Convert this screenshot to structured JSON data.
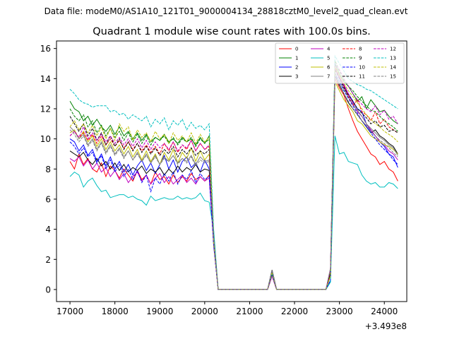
{
  "suptitle": "Data file: modeM0/AS1A10_121T01_9000004134_28818cztM0_level2_quad_clean.evt",
  "chart_data": {
    "type": "line",
    "title": "Quadrant 1 module wise count rates with 100.0s bins.",
    "xlabel": "",
    "ylabel": "",
    "x_offset_text": "+3.493e8",
    "xlim": [
      16700,
      24500
    ],
    "ylim": [
      -0.8,
      16.5
    ],
    "xticks": [
      17000,
      18000,
      19000,
      20000,
      21000,
      22000,
      23000,
      24000
    ],
    "yticks": [
      0,
      2,
      4,
      6,
      8,
      10,
      12,
      14,
      16
    ],
    "grid": false,
    "legend_position": "top-right",
    "x_start": 17000,
    "x_step": 100,
    "gap_start": 20100,
    "gap_end": 22800,
    "series": [
      {
        "name": "0",
        "color": "#ff0000",
        "dash": "solid",
        "pre": [
          8.5,
          8.0,
          9.0,
          8.3,
          8.7,
          8.0,
          7.8,
          8.4,
          7.5,
          8.2,
          7.9,
          7.4,
          8.0,
          7.6,
          7.2,
          7.9,
          7.3,
          7.6,
          7.0,
          7.8,
          7.3,
          7.5,
          7.0,
          7.6,
          7.1,
          7.5,
          7.2,
          7.7,
          7.3,
          7.5,
          7.2,
          7.6
        ],
        "post": [
          14.0,
          13.4,
          12.9,
          12.0,
          11.2,
          10.5,
          10.0,
          9.5,
          9.0,
          8.8,
          8.3,
          8.5,
          8.0,
          7.8,
          7.2
        ]
      },
      {
        "name": "1",
        "color": "#008000",
        "dash": "solid",
        "pre": [
          12.5,
          12.0,
          11.8,
          11.2,
          11.5,
          10.9,
          11.3,
          10.8,
          10.5,
          10.9,
          10.3,
          10.8,
          10.2,
          10.5,
          10.0,
          10.4,
          9.9,
          10.3,
          9.8,
          10.1,
          9.9,
          10.3,
          9.8,
          10.0,
          9.7,
          10.1,
          9.8,
          10.0,
          9.6,
          10.1,
          9.7,
          10.2
        ],
        "post": [
          15.0,
          14.3,
          13.8,
          13.5,
          13.0,
          12.5,
          12.8,
          12.0,
          12.6,
          12.2,
          11.8,
          11.9,
          11.5,
          11.2,
          11.0
        ]
      },
      {
        "name": "2",
        "color": "#0000ff",
        "dash": "solid",
        "pre": [
          10.0,
          9.8,
          9.2,
          9.6,
          8.9,
          9.3,
          8.5,
          9.0,
          8.2,
          8.8,
          8.0,
          8.5,
          7.8,
          8.3,
          7.6,
          8.2,
          8.6,
          7.9,
          8.4,
          7.7,
          8.3,
          8.9,
          8.0,
          8.6,
          7.8,
          8.5,
          8.8,
          8.1,
          8.4,
          7.8,
          8.6,
          8.0
        ],
        "post": [
          14.8,
          14.0,
          13.5,
          13.0,
          12.5,
          12.0,
          11.8,
          11.0,
          10.5,
          10.2,
          9.8,
          9.5,
          9.0,
          8.8,
          8.1
        ]
      },
      {
        "name": "3",
        "color": "#000000",
        "dash": "solid",
        "pre": [
          9.2,
          9.0,
          8.8,
          9.1,
          8.6,
          8.3,
          8.7,
          8.2,
          8.5,
          8.0,
          8.4,
          7.9,
          8.3,
          7.8,
          8.1,
          7.9,
          8.2,
          7.7,
          8.0,
          7.8,
          8.1,
          7.6,
          8.0,
          7.7,
          8.2,
          7.8,
          8.1,
          7.9,
          8.3,
          7.8,
          8.0,
          7.9
        ],
        "post": [
          14.2,
          13.6,
          13.0,
          12.4,
          12.0,
          11.6,
          11.2,
          10.8,
          10.4,
          10.6,
          10.2,
          10.0,
          9.7,
          9.5,
          9.0
        ]
      },
      {
        "name": "4",
        "color": "#bf00bf",
        "dash": "solid",
        "pre": [
          8.7,
          8.5,
          8.8,
          8.2,
          8.6,
          8.0,
          8.4,
          7.8,
          8.1,
          7.5,
          7.9,
          7.3,
          7.7,
          7.1,
          7.5,
          7.8,
          7.2,
          7.6,
          7.0,
          7.4,
          7.7,
          7.1,
          7.5,
          7.0,
          7.3,
          7.6,
          7.1,
          7.4,
          7.0,
          7.5,
          7.2,
          7.4
        ],
        "post": [
          14.6,
          14.1,
          13.6,
          13.0,
          12.4,
          11.8,
          11.5,
          11.0,
          10.6,
          10.2,
          9.8,
          9.6,
          9.2,
          9.0,
          8.6
        ]
      },
      {
        "name": "5",
        "color": "#00bfbf",
        "dash": "solid",
        "pre": [
          7.5,
          7.8,
          7.6,
          6.8,
          7.2,
          7.4,
          6.9,
          6.5,
          6.6,
          6.1,
          6.2,
          6.3,
          6.3,
          6.1,
          6.2,
          6.0,
          5.9,
          5.6,
          6.2,
          5.9,
          6.0,
          6.1,
          6.0,
          6.0,
          6.2,
          6.0,
          6.1,
          6.0,
          6.1,
          6.4,
          5.9,
          5.8
        ],
        "post": [
          10.2,
          9.0,
          9.1,
          8.5,
          8.4,
          8.3,
          7.6,
          7.2,
          7.0,
          7.1,
          6.8,
          6.8,
          7.1,
          7.0,
          6.7
        ]
      },
      {
        "name": "6",
        "color": "#bfbf00",
        "dash": "solid",
        "pre": [
          10.4,
          10.6,
          10.0,
          10.5,
          9.8,
          10.2,
          9.5,
          10.0,
          9.3,
          9.8,
          9.2,
          9.6,
          9.0,
          9.5,
          8.8,
          9.3,
          8.6,
          9.2,
          8.5,
          9.0,
          8.3,
          9.1,
          8.6,
          9.3,
          8.4,
          9.1,
          8.7,
          9.4,
          8.5,
          9.2,
          8.6,
          9.0
        ],
        "post": [
          13.8,
          13.2,
          12.6,
          12.2,
          11.8,
          11.2,
          11.0,
          10.6,
          10.2,
          10.0,
          9.8,
          9.6,
          9.5,
          9.3,
          9.0
        ]
      },
      {
        "name": "7",
        "color": "#808080",
        "dash": "solid",
        "pre": [
          10.8,
          10.5,
          10.0,
          10.3,
          9.6,
          10.0,
          9.3,
          9.8,
          9.1,
          9.6,
          9.0,
          9.4,
          8.8,
          9.2,
          8.6,
          9.1,
          8.5,
          9.0,
          8.4,
          8.9,
          8.3,
          8.8,
          8.5,
          8.9,
          8.4,
          8.7,
          8.5,
          8.9,
          8.3,
          8.8,
          8.5,
          8.6
        ],
        "post": [
          14.4,
          13.8,
          13.3,
          12.8,
          12.3,
          11.9,
          11.5,
          11.0,
          10.7,
          10.4,
          10.1,
          9.9,
          9.6,
          9.4,
          8.9
        ]
      },
      {
        "name": "8",
        "color": "#ff0000",
        "dash": "dashed",
        "pre": [
          10.2,
          10.5,
          10.1,
          10.4,
          9.9,
          10.3,
          9.7,
          10.2,
          9.6,
          10.0,
          9.5,
          9.9,
          9.4,
          9.8,
          9.3,
          9.7,
          9.2,
          9.6,
          9.1,
          9.5,
          9.0,
          9.7,
          9.2,
          9.8,
          9.1,
          9.6,
          9.3,
          9.9,
          9.2,
          9.7,
          9.3,
          9.5
        ],
        "post": [
          14.8,
          14.2,
          13.5,
          12.8,
          12.2,
          12.6,
          11.8,
          11.6,
          11.2,
          11.8,
          11.0,
          11.3,
          10.8,
          10.6,
          10.4
        ]
      },
      {
        "name": "9",
        "color": "#008000",
        "dash": "dashed",
        "pre": [
          12.0,
          11.5,
          11.2,
          11.6,
          10.8,
          11.2,
          10.4,
          10.9,
          10.2,
          10.7,
          10.1,
          10.5,
          9.9,
          10.4,
          9.8,
          10.3,
          9.7,
          10.2,
          9.6,
          10.1,
          9.9,
          10.2,
          9.7,
          10.1,
          9.6,
          10.0,
          9.8,
          10.1,
          9.5,
          10.0,
          9.7,
          10.0
        ],
        "post": [
          15.2,
          14.5,
          13.9,
          13.5,
          13.2,
          12.8,
          12.5,
          12.2,
          11.9,
          11.8,
          11.5,
          11.2,
          11.0,
          10.8,
          10.5
        ]
      },
      {
        "name": "10",
        "color": "#0000ff",
        "dash": "dashed",
        "pre": [
          9.8,
          9.5,
          9.0,
          9.4,
          8.8,
          9.1,
          8.4,
          8.9,
          8.0,
          8.6,
          7.8,
          8.3,
          7.5,
          8.0,
          7.3,
          7.9,
          7.1,
          7.6,
          6.5,
          7.4,
          7.0,
          7.7,
          7.2,
          7.8,
          7.0,
          7.6,
          7.3,
          7.9,
          7.1,
          7.7,
          7.3,
          7.5
        ],
        "post": [
          14.3,
          13.8,
          13.2,
          12.7,
          12.2,
          11.7,
          11.2,
          10.8,
          10.4,
          10.0,
          9.6,
          9.3,
          9.0,
          8.6,
          8.3
        ]
      },
      {
        "name": "11",
        "color": "#000000",
        "dash": "dashed",
        "pre": [
          11.5,
          11.0,
          10.5,
          11.0,
          10.2,
          10.7,
          9.9,
          10.4,
          9.6,
          10.2,
          9.5,
          10.0,
          9.3,
          9.8,
          9.2,
          9.7,
          9.1,
          9.5,
          9.0,
          9.4,
          8.9,
          9.3,
          9.0,
          9.5,
          8.8,
          9.3,
          9.0,
          9.4,
          8.9,
          9.2,
          9.0,
          9.3
        ],
        "post": [
          14.6,
          14.0,
          13.4,
          12.9,
          12.5,
          12.0,
          11.7,
          11.4,
          11.0,
          11.2,
          10.8,
          10.9,
          10.5,
          10.6,
          10.4
        ]
      },
      {
        "name": "12",
        "color": "#bf00bf",
        "dash": "dashed",
        "pre": [
          10.2,
          10.5,
          10.1,
          10.8,
          10.0,
          10.4,
          9.9,
          10.3,
          9.8,
          10.2,
          9.7,
          10.1,
          9.6,
          10.0,
          9.5,
          10.0,
          9.4,
          9.9,
          9.3,
          9.8,
          9.4,
          9.7,
          9.3,
          9.8,
          9.2,
          9.6,
          9.4,
          9.9,
          9.2,
          9.7,
          9.3,
          9.6
        ],
        "post": [
          15.0,
          14.6,
          14.0,
          13.5,
          13.0,
          12.6,
          12.3,
          12.0,
          11.8,
          12.2,
          11.6,
          11.9,
          11.3,
          11.5,
          11.0
        ]
      },
      {
        "name": "13",
        "color": "#00bfbf",
        "dash": "dashed",
        "pre": [
          13.3,
          13.0,
          12.6,
          12.4,
          12.3,
          12.1,
          12.2,
          12.2,
          12.2,
          11.8,
          11.9,
          11.6,
          11.7,
          11.3,
          11.6,
          11.4,
          11.2,
          11.5,
          10.8,
          11.3,
          11.0,
          11.4,
          10.6,
          11.2,
          10.9,
          11.3,
          10.6,
          11.1,
          10.7,
          10.9,
          10.6,
          11.0
        ],
        "post": [
          15.5,
          15.0,
          14.5,
          14.0,
          13.8,
          13.6,
          13.5,
          13.3,
          13.2,
          13.0,
          12.8,
          12.6,
          12.4,
          12.2,
          12.0
        ]
      },
      {
        "name": "14",
        "color": "#bfbf00",
        "dash": "dashed",
        "pre": [
          10.8,
          11.2,
          10.6,
          11.0,
          10.4,
          10.9,
          10.2,
          10.8,
          10.0,
          10.7,
          9.9,
          11.0,
          10.5,
          10.8,
          9.9,
          10.6,
          10.1,
          10.4,
          9.8,
          10.5,
          10.0,
          10.3,
          9.7,
          10.4,
          9.9,
          10.2,
          9.8,
          10.4,
          9.7,
          10.3,
          9.8,
          10.1
        ],
        "post": [
          14.7,
          14.2,
          13.7,
          13.2,
          12.8,
          12.4,
          12.0,
          11.6,
          11.3,
          11.0,
          10.8,
          10.5,
          10.3,
          10.1,
          9.8
        ]
      },
      {
        "name": "15",
        "color": "#808080",
        "dash": "dashed",
        "pre": [
          10.6,
          10.3,
          9.8,
          10.2,
          9.5,
          9.9,
          9.2,
          9.7,
          9.0,
          9.5,
          8.9,
          9.3,
          8.7,
          9.2,
          8.6,
          9.0,
          8.5,
          8.9,
          8.4,
          8.8,
          8.3,
          8.7,
          8.5,
          8.9,
          8.3,
          8.7,
          8.4,
          8.8,
          8.2,
          8.6,
          8.4,
          8.5
        ],
        "post": [
          14.1,
          13.5,
          13.0,
          12.5,
          12.0,
          11.6,
          11.2,
          10.9,
          10.5,
          10.2,
          9.9,
          9.7,
          9.4,
          9.1,
          8.8
        ]
      }
    ]
  }
}
